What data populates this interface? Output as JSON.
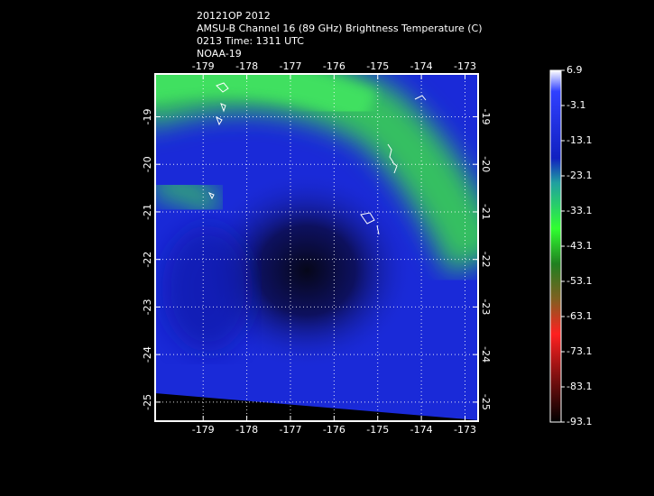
{
  "header": {
    "lines": [
      "20121OP 2012",
      "AMSU-B Channel 16 (89 GHz) Brightness Temperature (C)",
      "0213 Time: 1311 UTC",
      "NOAA-19"
    ]
  },
  "map": {
    "xlim": [
      -180.1,
      -172.7
    ],
    "ylim": [
      -18.1,
      -25.4
    ],
    "xticks": [
      -179,
      -178,
      -177,
      -176,
      -175,
      -174,
      -173
    ],
    "yticks": [
      -19,
      -20,
      -21,
      -22,
      -23,
      -24,
      -25
    ],
    "grid": true
  },
  "colorbar": {
    "lim": [
      6.9,
      -93.1
    ],
    "ticks": [
      6.9,
      -3.1,
      -13.1,
      -23.1,
      -33.1,
      -43.1,
      -53.1,
      -63.1,
      -73.1,
      -83.1,
      -93.1
    ]
  }
}
